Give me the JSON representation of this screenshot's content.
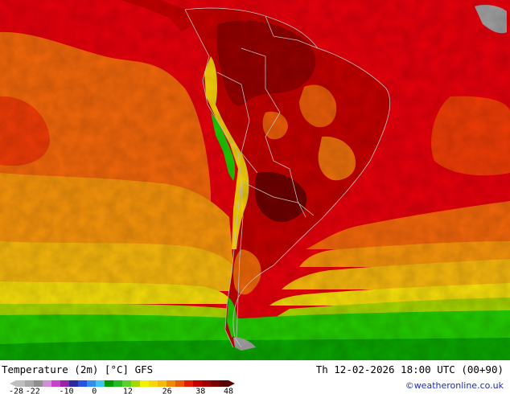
{
  "map": {
    "title": "Temperature (2m) [°C] GFS",
    "valid_time": "Th 12-02-2026 18:00 UTC (00+90)",
    "credit": "©weatheronline.co.uk",
    "region": "South America",
    "colors": {
      "red": "#e6000b",
      "dark_red": "#b40000",
      "darker_red": "#8c0000",
      "orange_red": "#ee3b06",
      "orange": "#f08a05",
      "light_orange": "#f5a70c",
      "amber": "#f2c40c",
      "yellow": "#f4e40a",
      "lime": "#a2d400",
      "green": "#23c900",
      "dark_green": "#0aa300",
      "land_gray": "#a0a0a0",
      "border": "#c9c9c9"
    }
  },
  "legend": {
    "ticks": [
      "-28",
      "-22",
      "-10",
      "0",
      "12",
      "26",
      "38",
      "48"
    ],
    "colors": [
      "#bfbfbf",
      "#a8a8a8",
      "#8f8f8f",
      "#d58ad8",
      "#c542c9",
      "#9c22a9",
      "#2a2aa0",
      "#2a52e0",
      "#2f8ef0",
      "#3cc6ee",
      "#009a00",
      "#22bb22",
      "#5ad12b",
      "#a3d800",
      "#f2f200",
      "#f5d70a",
      "#f5b80d",
      "#f08a05",
      "#ea5a05",
      "#e41b05",
      "#c30000",
      "#a00000",
      "#7d0000",
      "#5a0000"
    ]
  }
}
